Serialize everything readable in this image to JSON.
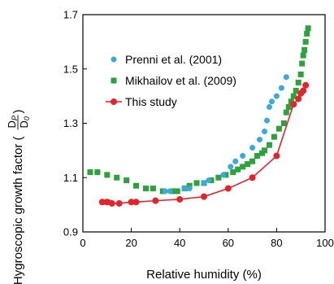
{
  "chart_data": {
    "type": "scatter",
    "xlabel": "Relative humidity (%)",
    "ylabel": "Hygroscopic growth factor (",
    "ylabel_fraction": {
      "num_base": "D",
      "num_sub": "P",
      "den_base": "D",
      "den_sub": "0",
      "close": ")"
    },
    "xlim": [
      0,
      100
    ],
    "ylim": [
      0.9,
      1.7
    ],
    "xticks": [
      0,
      20,
      40,
      60,
      80,
      100
    ],
    "yticks": [
      0.9,
      1.1,
      1.3,
      1.5,
      1.7
    ],
    "legend_position": "top-left",
    "grid": false,
    "series": [
      {
        "name": "Prenni et al. (2001)",
        "marker": "circle",
        "color": "#3aa9dc",
        "x": [
          9,
          11,
          34,
          36,
          42,
          44,
          50,
          52,
          58,
          61,
          63,
          66,
          70,
          73,
          75,
          76,
          77,
          78,
          80,
          82,
          84
        ],
        "y": [
          1.01,
          1.01,
          1.05,
          1.05,
          1.06,
          1.06,
          1.08,
          1.09,
          1.11,
          1.14,
          1.16,
          1.18,
          1.21,
          1.24,
          1.27,
          1.31,
          1.36,
          1.38,
          1.4,
          1.43,
          1.47
        ]
      },
      {
        "name": "Mikhailov et al. (2009)",
        "marker": "square",
        "color": "#2aa33a",
        "x": [
          3,
          6,
          10,
          14,
          18,
          22,
          26,
          29,
          33,
          37,
          39,
          42,
          44,
          47,
          50,
          53,
          56,
          59,
          62,
          64,
          66,
          68,
          70,
          72,
          74,
          75,
          77,
          79,
          81,
          83,
          84,
          85,
          86,
          87,
          88,
          89,
          90,
          90.5,
          91,
          91.5,
          92,
          92.5,
          93
        ],
        "y": [
          1.12,
          1.12,
          1.11,
          1.1,
          1.09,
          1.07,
          1.06,
          1.06,
          1.05,
          1.05,
          1.05,
          1.06,
          1.07,
          1.08,
          1.08,
          1.09,
          1.1,
          1.11,
          1.12,
          1.13,
          1.14,
          1.15,
          1.16,
          1.18,
          1.19,
          1.2,
          1.22,
          1.25,
          1.28,
          1.3,
          1.34,
          1.36,
          1.38,
          1.4,
          1.42,
          1.45,
          1.48,
          1.52,
          1.55,
          1.57,
          1.6,
          1.63,
          1.65
        ]
      },
      {
        "name": "This study",
        "marker": "circle-line",
        "color": "#e8222a",
        "x": [
          8,
          10,
          12,
          15,
          20,
          22,
          30,
          40,
          50,
          60,
          70,
          80,
          87,
          89,
          90,
          91,
          92
        ],
        "y": [
          1.01,
          1.01,
          1.005,
          1.005,
          1.01,
          1.01,
          1.015,
          1.02,
          1.03,
          1.06,
          1.1,
          1.18,
          1.37,
          1.39,
          1.41,
          1.42,
          1.44
        ]
      }
    ]
  }
}
